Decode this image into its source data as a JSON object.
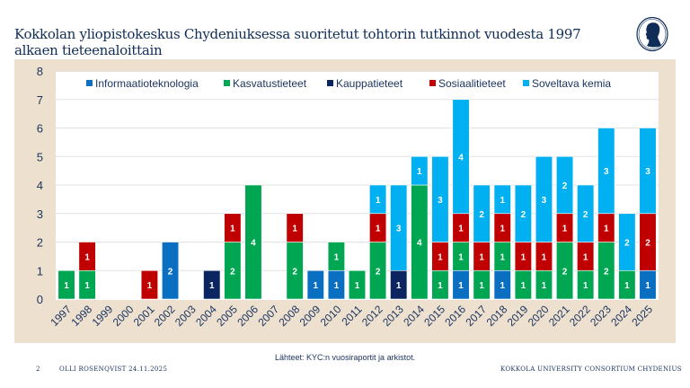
{
  "slide": {
    "title": "Kokkolan yliopistokeskus Chydeniuksessa suoritetut tohtorin tutkinnot vuodesta 1997 alkaen tieteenaloittain",
    "page_number": "2",
    "author_date": "OLLI ROSENQVIST 24.11.2025",
    "organization": "KOKKOLA UNIVERSITY CONSORTIUM CHYDENIUS",
    "source": "Lähteet: KYC:n vuosiraportit ja arkistot.",
    "logo_icon": "silhouette-portrait-logo"
  },
  "chart_data": {
    "type": "bar",
    "stacked": true,
    "title": "",
    "xlabel": "",
    "ylabel": "",
    "ylim": [
      0,
      8
    ],
    "yticks": [
      0,
      1,
      2,
      3,
      4,
      5,
      6,
      7,
      8
    ],
    "grid": true,
    "legend_position": "top",
    "categories": [
      "1997",
      "1998",
      "1999",
      "2000",
      "2001",
      "2002",
      "2003",
      "2004",
      "2005",
      "2006",
      "2007",
      "2008",
      "2009",
      "2010",
      "2011",
      "2012",
      "2013",
      "2014",
      "2015",
      "2016",
      "2017",
      "2018",
      "2019",
      "2020",
      "2021",
      "2022",
      "2023",
      "2024",
      "2025"
    ],
    "series": [
      {
        "name": "Informaatioteknologia",
        "color": "#0b6fc1",
        "values": [
          0,
          0,
          0,
          0,
          0,
          2,
          0,
          0,
          0,
          0,
          0,
          0,
          1,
          1,
          0,
          0,
          0,
          0,
          0,
          1,
          0,
          1,
          0,
          0,
          0,
          0,
          0,
          0,
          1
        ]
      },
      {
        "name": "Kasvatustieteet",
        "color": "#00a651",
        "values": [
          1,
          1,
          0,
          0,
          0,
          0,
          0,
          0,
          2,
          4,
          0,
          2,
          0,
          1,
          1,
          2,
          0,
          4,
          1,
          1,
          1,
          1,
          1,
          1,
          2,
          1,
          2,
          1,
          0
        ]
      },
      {
        "name": "Kauppatieteet",
        "color": "#0a2560",
        "values": [
          0,
          0,
          0,
          0,
          0,
          0,
          0,
          1,
          0,
          0,
          0,
          0,
          0,
          0,
          0,
          0,
          1,
          0,
          0,
          0,
          0,
          0,
          0,
          0,
          0,
          0,
          0,
          0,
          0
        ]
      },
      {
        "name": "Sosiaalitieteet",
        "color": "#c00000",
        "values": [
          0,
          1,
          0,
          0,
          1,
          0,
          0,
          0,
          1,
          0,
          0,
          1,
          0,
          0,
          0,
          1,
          0,
          0,
          1,
          1,
          1,
          1,
          1,
          1,
          1,
          1,
          1,
          0,
          2
        ]
      },
      {
        "name": "Soveltava kemia",
        "color": "#00b0f0",
        "values": [
          0,
          0,
          0,
          0,
          0,
          0,
          0,
          0,
          0,
          0,
          0,
          0,
          0,
          0,
          0,
          1,
          3,
          1,
          3,
          4,
          2,
          1,
          2,
          3,
          2,
          2,
          3,
          2,
          3
        ]
      }
    ]
  }
}
